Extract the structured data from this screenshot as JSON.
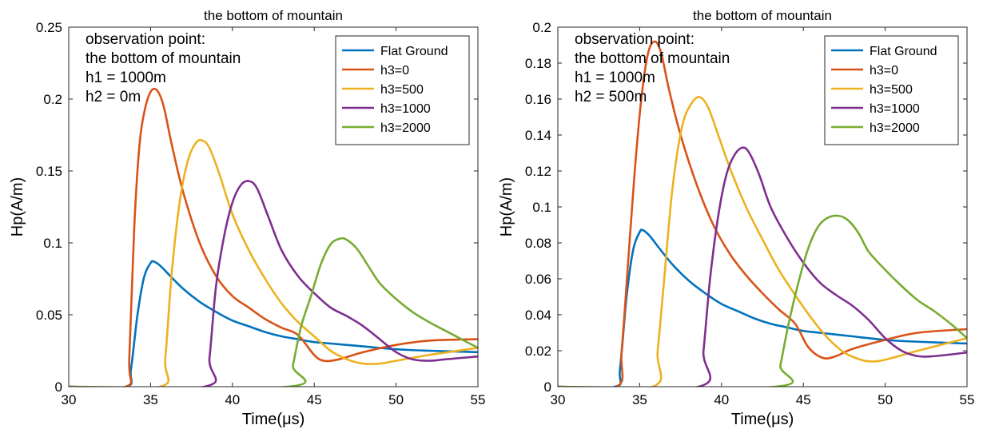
{
  "chart_data": [
    {
      "type": "line",
      "title": "the bottom of mountain",
      "xlabel": "Time(μs)",
      "ylabel": "Hp(A/m)",
      "xlim": [
        30,
        55
      ],
      "ylim": [
        0,
        0.25
      ],
      "xticks": [
        30,
        35,
        40,
        45,
        50,
        55
      ],
      "yticks": [
        0,
        0.05,
        0.1,
        0.15,
        0.2,
        0.25
      ],
      "ytick_labels": [
        "0",
        "0.05",
        "0.1",
        "0.15",
        "0.2",
        "0.25"
      ],
      "grid": false,
      "legend_position": "top-right",
      "annotation": [
        "observation point:",
        "the bottom of mountain",
        "h1 = 1000m",
        "h2 = 0m"
      ],
      "series": [
        {
          "name": "Flat Ground",
          "color": "#0072BD",
          "x": [
            30,
            33.5,
            33.8,
            34.2,
            34.6,
            35.0,
            35.2,
            35.6,
            36.2,
            37,
            38,
            39,
            40,
            41,
            42,
            43,
            44,
            45,
            46,
            48,
            50,
            52,
            55
          ],
          "y": [
            0,
            0,
            0.012,
            0.05,
            0.076,
            0.086,
            0.087,
            0.084,
            0.077,
            0.068,
            0.059,
            0.052,
            0.046,
            0.042,
            0.038,
            0.035,
            0.033,
            0.031,
            0.03,
            0.028,
            0.026,
            0.025,
            0.024
          ]
        },
        {
          "name": "h3=0",
          "color": "#D95319",
          "x": [
            30,
            33.5,
            33.7,
            34.0,
            34.3,
            34.6,
            35.0,
            35.4,
            35.8,
            36.3,
            37,
            38,
            39,
            40,
            41,
            42,
            43,
            44,
            45,
            45.6,
            46.5,
            48,
            50,
            52,
            55
          ],
          "y": [
            0,
            0,
            0.02,
            0.11,
            0.165,
            0.19,
            0.205,
            0.206,
            0.195,
            0.168,
            0.135,
            0.1,
            0.077,
            0.063,
            0.055,
            0.047,
            0.041,
            0.036,
            0.022,
            0.018,
            0.019,
            0.024,
            0.029,
            0.032,
            0.033
          ]
        },
        {
          "name": "h3=500",
          "color": "#EDB120",
          "x": [
            30,
            35.6,
            35.9,
            36.3,
            36.8,
            37.3,
            37.8,
            38.2,
            38.6,
            39.2,
            40,
            41,
            42,
            43,
            44,
            45,
            46,
            47,
            48,
            49,
            50,
            52,
            55
          ],
          "y": [
            0,
            0,
            0.02,
            0.08,
            0.13,
            0.158,
            0.17,
            0.171,
            0.166,
            0.148,
            0.12,
            0.095,
            0.075,
            0.058,
            0.045,
            0.035,
            0.025,
            0.019,
            0.016,
            0.016,
            0.018,
            0.022,
            0.027
          ]
        },
        {
          "name": "h3=1000",
          "color": "#7E2F8E",
          "x": [
            30,
            38.3,
            38.6,
            39.0,
            39.5,
            40.0,
            40.5,
            41.0,
            41.5,
            42.2,
            43,
            44,
            45,
            46,
            47,
            48,
            49,
            50,
            51,
            52,
            53,
            55
          ],
          "y": [
            0,
            0,
            0.02,
            0.07,
            0.105,
            0.128,
            0.14,
            0.143,
            0.138,
            0.118,
            0.095,
            0.077,
            0.065,
            0.055,
            0.049,
            0.042,
            0.033,
            0.024,
            0.019,
            0.018,
            0.019,
            0.021
          ]
        },
        {
          "name": "h3=2000",
          "color": "#77AC30",
          "x": [
            30,
            43.4,
            43.7,
            44.2,
            44.8,
            45.4,
            46.0,
            46.6,
            47.0,
            47.6,
            48.3,
            49,
            50,
            51,
            52,
            53,
            54,
            55
          ],
          "y": [
            0,
            0,
            0.015,
            0.042,
            0.063,
            0.085,
            0.099,
            0.103,
            0.102,
            0.096,
            0.084,
            0.072,
            0.061,
            0.052,
            0.045,
            0.039,
            0.033,
            0.027
          ]
        }
      ]
    },
    {
      "type": "line",
      "title": "the bottom of mountain",
      "xlabel": "Time(μs)",
      "ylabel": "Hp(A/m)",
      "xlim": [
        30,
        55
      ],
      "ylim": [
        0,
        0.2
      ],
      "xticks": [
        30,
        35,
        40,
        45,
        50,
        55
      ],
      "yticks": [
        0,
        0.02,
        0.04,
        0.06,
        0.08,
        0.1,
        0.12,
        0.14,
        0.16,
        0.18,
        0.2
      ],
      "ytick_labels": [
        "0",
        "0.02",
        "0.04",
        "0.06",
        "0.08",
        "0.1",
        "0.12",
        "0.14",
        "0.16",
        "0.18",
        "0.2"
      ],
      "grid": false,
      "legend_position": "top-right",
      "annotation": [
        "observation point:",
        "the bottom of mountain",
        "h1 = 1000m",
        "h2 = 500m"
      ],
      "series": [
        {
          "name": "Flat Ground",
          "color": "#0072BD",
          "x": [
            30,
            33.5,
            33.8,
            34.2,
            34.6,
            35.0,
            35.2,
            35.6,
            36.2,
            37,
            38,
            39,
            40,
            41,
            42,
            43,
            44,
            45,
            46,
            48,
            50,
            52,
            55
          ],
          "y": [
            0,
            0,
            0.01,
            0.05,
            0.076,
            0.086,
            0.087,
            0.084,
            0.077,
            0.068,
            0.059,
            0.052,
            0.046,
            0.042,
            0.038,
            0.035,
            0.033,
            0.031,
            0.03,
            0.028,
            0.026,
            0.025,
            0.024
          ]
        },
        {
          "name": "h3=0",
          "color": "#D95319",
          "x": [
            30,
            33.6,
            33.9,
            34.3,
            34.7,
            35.1,
            35.5,
            35.9,
            36.3,
            36.8,
            37.5,
            38.5,
            39.5,
            40.5,
            41.5,
            42.5,
            43.5,
            44.5,
            45.3,
            46.2,
            47,
            48,
            50,
            52,
            55
          ],
          "y": [
            0,
            0,
            0.02,
            0.07,
            0.12,
            0.16,
            0.185,
            0.192,
            0.186,
            0.165,
            0.14,
            0.112,
            0.09,
            0.074,
            0.062,
            0.052,
            0.043,
            0.035,
            0.022,
            0.016,
            0.017,
            0.021,
            0.026,
            0.03,
            0.032
          ]
        },
        {
          "name": "h3=500",
          "color": "#EDB120",
          "x": [
            30,
            35.8,
            36.1,
            36.5,
            37.0,
            37.6,
            38.2,
            38.7,
            39.2,
            39.8,
            40.5,
            41.5,
            42.5,
            43.5,
            44.5,
            45.5,
            46.5,
            47.5,
            48.5,
            49.2,
            50,
            52,
            55
          ],
          "y": [
            0,
            0,
            0.02,
            0.06,
            0.11,
            0.145,
            0.158,
            0.161,
            0.155,
            0.14,
            0.122,
            0.1,
            0.082,
            0.065,
            0.051,
            0.038,
            0.027,
            0.019,
            0.015,
            0.014,
            0.015,
            0.02,
            0.027
          ]
        },
        {
          "name": "h3=1000",
          "color": "#7E2F8E",
          "x": [
            30,
            38.6,
            38.9,
            39.3,
            39.8,
            40.3,
            40.8,
            41.3,
            41.7,
            42.3,
            43,
            44,
            45,
            46,
            47,
            48,
            49,
            50,
            51,
            52,
            53,
            55
          ],
          "y": [
            0,
            0,
            0.02,
            0.06,
            0.095,
            0.118,
            0.129,
            0.133,
            0.13,
            0.118,
            0.1,
            0.083,
            0.069,
            0.058,
            0.051,
            0.045,
            0.037,
            0.027,
            0.02,
            0.017,
            0.017,
            0.019
          ]
        },
        {
          "name": "h3=2000",
          "color": "#77AC30",
          "x": [
            30,
            43.3,
            43.6,
            44.1,
            44.7,
            45.3,
            45.9,
            46.5,
            47.2,
            47.8,
            48.4,
            49,
            50,
            51,
            52,
            53,
            54,
            55
          ],
          "y": [
            0,
            0,
            0.012,
            0.035,
            0.058,
            0.077,
            0.089,
            0.094,
            0.095,
            0.092,
            0.085,
            0.075,
            0.065,
            0.056,
            0.048,
            0.042,
            0.035,
            0.027
          ]
        }
      ]
    }
  ]
}
